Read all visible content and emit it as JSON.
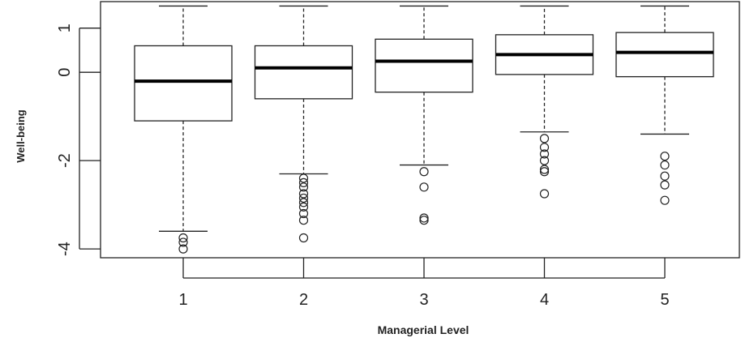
{
  "chart_data": {
    "type": "boxplot",
    "title": "",
    "xlabel": "Managerial Level",
    "ylabel": "Well-being",
    "categories": [
      "1",
      "2",
      "3",
      "4",
      "5"
    ],
    "yticks": [
      -4,
      -2,
      0,
      1
    ],
    "ytick_labels": [
      "-4",
      "-2",
      "0",
      "1"
    ],
    "ylim": [
      -4.2,
      1.6
    ],
    "grid": false,
    "boxes": [
      {
        "category": "1",
        "whisker_low": -3.6,
        "q1": -1.1,
        "median": -0.2,
        "q3": 0.6,
        "whisker_high": 1.5,
        "outliers": [
          -3.75,
          -3.85,
          -4.0
        ]
      },
      {
        "category": "2",
        "whisker_low": -2.3,
        "q1": -0.6,
        "median": 0.1,
        "q3": 0.6,
        "whisker_high": 1.5,
        "outliers": [
          -2.4,
          -2.5,
          -2.6,
          -2.75,
          -2.85,
          -2.95,
          -3.05,
          -3.2,
          -3.35,
          -3.75
        ]
      },
      {
        "category": "3",
        "whisker_low": -2.1,
        "q1": -0.45,
        "median": 0.25,
        "q3": 0.75,
        "whisker_high": 1.5,
        "outliers": [
          -2.25,
          -2.6,
          -3.3,
          -3.35
        ]
      },
      {
        "category": "4",
        "whisker_low": -1.35,
        "q1": -0.05,
        "median": 0.4,
        "q3": 0.85,
        "whisker_high": 1.5,
        "outliers": [
          -1.5,
          -1.7,
          -1.85,
          -2.0,
          -2.2,
          -2.25,
          -2.75
        ]
      },
      {
        "category": "5",
        "whisker_low": -1.4,
        "q1": -0.1,
        "median": 0.45,
        "q3": 0.9,
        "whisker_high": 1.5,
        "outliers": [
          -1.9,
          -2.1,
          -2.35,
          -2.55,
          -2.9
        ]
      }
    ]
  }
}
